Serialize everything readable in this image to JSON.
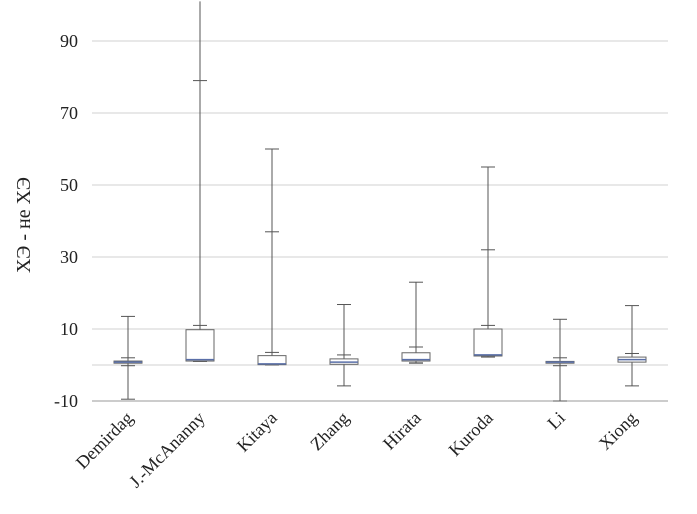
{
  "chart_data": {
    "type": "boxplot",
    "ylabel": "ХЭ - не ХЭ",
    "ylim": [
      -10,
      100
    ],
    "yticks": [
      -10,
      10,
      30,
      50,
      70,
      90
    ],
    "grid": true,
    "legend": "none",
    "categories": [
      "Demirdag",
      "J.-McAnanny",
      "Kitaya",
      "Zhang",
      "Hirata",
      "Kuroda",
      "Li",
      "Xiong"
    ],
    "series": [
      {
        "boxes": [
          {
            "min": -9.5,
            "q1": 0.5,
            "median": 0.8,
            "q3": 1.1,
            "max": 13.5,
            "lower_tick": -0.2,
            "upper_tick": 2.0
          },
          {
            "min": 1.0,
            "q1": 1.1,
            "median": 1.5,
            "q3": 9.8,
            "max": 101,
            "lower_tick": 1.0,
            "upper_tick": 11.0,
            "extra_tick": 79.0
          },
          {
            "min": 0.0,
            "q1": 0.1,
            "median": 0.3,
            "q3": 2.6,
            "max": 60.0,
            "lower_tick": 0.0,
            "upper_tick": 3.5,
            "extra_tick": 37.0
          },
          {
            "min": -5.8,
            "q1": 0.2,
            "median": 0.8,
            "q3": 1.7,
            "max": 16.8,
            "lower_tick": 0.3,
            "upper_tick": 2.8
          },
          {
            "min": 0.5,
            "q1": 1.1,
            "median": 1.5,
            "q3": 3.4,
            "max": 23.0,
            "lower_tick": 0.6,
            "upper_tick": 5.0
          },
          {
            "min": 2.2,
            "q1": 2.5,
            "median": 2.8,
            "q3": 10.0,
            "max": 55.0,
            "lower_tick": 2.5,
            "upper_tick": 11.0,
            "extra_tick": 32.0
          },
          {
            "min": -10.0,
            "q1": 0.5,
            "median": 0.8,
            "q3": 1.0,
            "max": 12.7,
            "lower_tick": -0.2,
            "upper_tick": 2.0
          },
          {
            "min": -5.8,
            "q1": 0.8,
            "median": 1.5,
            "q3": 2.2,
            "max": 16.5,
            "lower_tick": 0.9,
            "upper_tick": 3.2
          }
        ]
      }
    ],
    "colors": {
      "whisker": "#555555",
      "box_edge": "#666666",
      "median": "#5a6fa8",
      "grid": "#d0d0d0",
      "axis": "#999999"
    }
  }
}
